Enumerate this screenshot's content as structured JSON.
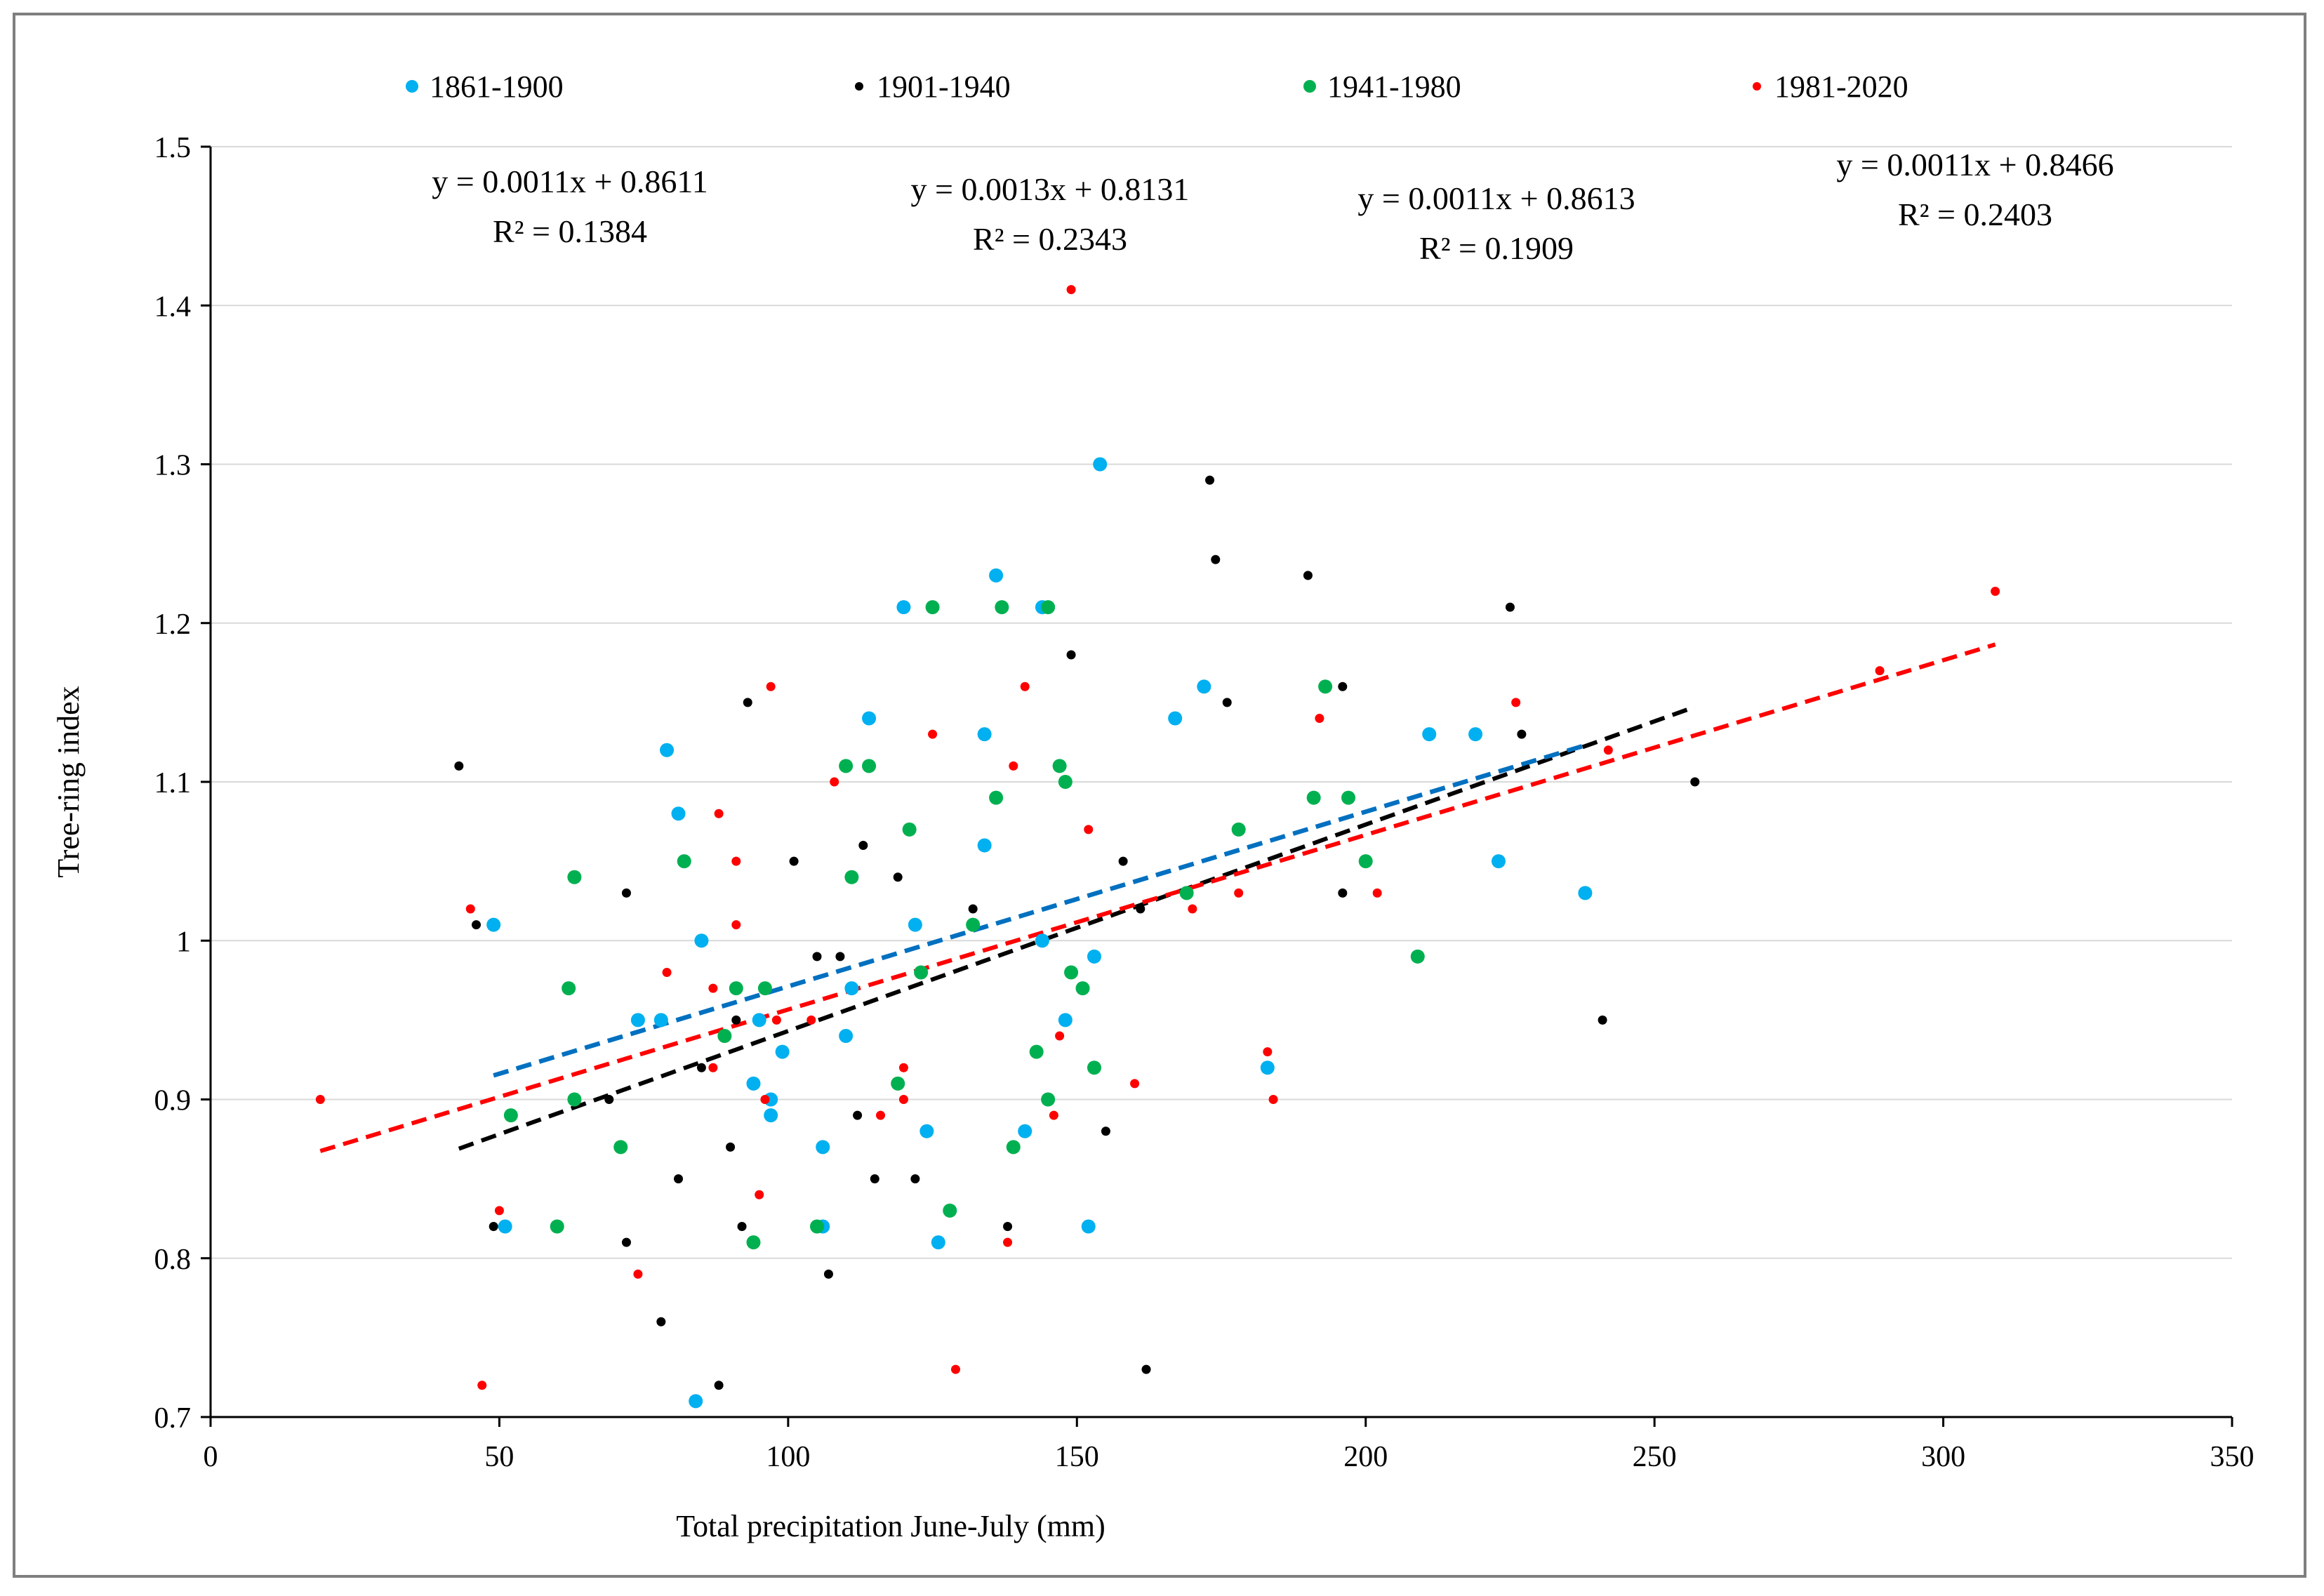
{
  "chart_data": {
    "type": "scatter",
    "xlabel": "Total precipitation  June-July (mm)",
    "ylabel": "Tree-ring index",
    "xlim": [
      0,
      350
    ],
    "ylim": [
      0.7,
      1.5
    ],
    "x_ticks": [
      "0",
      "50",
      "100",
      "150",
      "200",
      "250",
      "300",
      "350"
    ],
    "y_ticks": [
      "0.7",
      "0.8",
      "0.9",
      "1",
      "1.1",
      "1.2",
      "1.3",
      "1.4",
      "1.5"
    ],
    "grid": "horizontal",
    "legend_position": "top",
    "series": [
      {
        "name": "1861-1900",
        "color": "#00b0f0",
        "marker": "large",
        "equation": "y = 0.0011x + 0.8611",
        "r2": "R² = 0.1384",
        "trendline": {
          "slope": 0.0011,
          "intercept": 0.8611,
          "x_range": [
            49,
            238
          ],
          "color": "#0070c0"
        },
        "points": [
          [
            49,
            1.01
          ],
          [
            51,
            0.82
          ],
          [
            74,
            0.95
          ],
          [
            78,
            0.95
          ],
          [
            79,
            1.12
          ],
          [
            81,
            1.08
          ],
          [
            85,
            1.0
          ],
          [
            94,
            0.91
          ],
          [
            95,
            0.95
          ],
          [
            97,
            0.9
          ],
          [
            97,
            0.89
          ],
          [
            99,
            0.93
          ],
          [
            106,
            0.87
          ],
          [
            106,
            0.82
          ],
          [
            110,
            0.94
          ],
          [
            111,
            0.97
          ],
          [
            114,
            1.14
          ],
          [
            120,
            1.21
          ],
          [
            122,
            1.01
          ],
          [
            124,
            0.88
          ],
          [
            126,
            0.81
          ],
          [
            134,
            1.13
          ],
          [
            134,
            1.06
          ],
          [
            136,
            1.23
          ],
          [
            141,
            0.88
          ],
          [
            144,
            1.0
          ],
          [
            144,
            1.21
          ],
          [
            148,
            0.95
          ],
          [
            152,
            0.82
          ],
          [
            153,
            0.99
          ],
          [
            154,
            1.3
          ],
          [
            167,
            1.14
          ],
          [
            172,
            1.16
          ],
          [
            183,
            0.92
          ],
          [
            211,
            1.13
          ],
          [
            219,
            1.13
          ],
          [
            223,
            1.05
          ],
          [
            238,
            1.03
          ],
          [
            84,
            0.71
          ]
        ]
      },
      {
        "name": "1901-1940",
        "color": "#000000",
        "marker": "small",
        "equation": "y = 0.0013x + 0.8131",
        "r2": "R² = 0.2343",
        "trendline": {
          "slope": 0.0013,
          "intercept": 0.8131,
          "x_range": [
            43,
            257
          ],
          "color": "#000000"
        },
        "points": [
          [
            43,
            1.11
          ],
          [
            46,
            1.01
          ],
          [
            49,
            0.82
          ],
          [
            72,
            1.03
          ],
          [
            72,
            0.81
          ],
          [
            69,
            0.9
          ],
          [
            78,
            0.76
          ],
          [
            81,
            0.85
          ],
          [
            85,
            0.92
          ],
          [
            88,
            0.72
          ],
          [
            90,
            0.87
          ],
          [
            91,
            0.95
          ],
          [
            92,
            0.82
          ],
          [
            93,
            1.15
          ],
          [
            101,
            1.05
          ],
          [
            105,
            0.99
          ],
          [
            107,
            0.79
          ],
          [
            109,
            0.99
          ],
          [
            112,
            0.89
          ],
          [
            113,
            1.06
          ],
          [
            115,
            0.85
          ],
          [
            119,
            1.04
          ],
          [
            122,
            0.85
          ],
          [
            132,
            1.02
          ],
          [
            138,
            0.82
          ],
          [
            149,
            1.18
          ],
          [
            155,
            0.88
          ],
          [
            158,
            1.05
          ],
          [
            161,
            1.02
          ],
          [
            162,
            0.73
          ],
          [
            173,
            1.29
          ],
          [
            174,
            1.24
          ],
          [
            176,
            1.15
          ],
          [
            190,
            1.23
          ],
          [
            196,
            1.16
          ],
          [
            196,
            1.03
          ],
          [
            225,
            1.21
          ],
          [
            227,
            1.13
          ],
          [
            241,
            0.95
          ],
          [
            257,
            1.1
          ]
        ]
      },
      {
        "name": "1941-1980",
        "color": "#00b050",
        "marker": "large",
        "equation": "y = 0.0011x + 0.8613",
        "r2": "R² = 0.1909",
        "trendline": {
          "slope": 0.0011,
          "intercept": 0.8613,
          "x_range": [
            49,
            238
          ],
          "color": "#0070c0"
        },
        "points": [
          [
            52,
            0.89
          ],
          [
            60,
            0.82
          ],
          [
            62,
            0.97
          ],
          [
            63,
            1.04
          ],
          [
            63,
            0.9
          ],
          [
            71,
            0.87
          ],
          [
            82,
            1.05
          ],
          [
            89,
            0.94
          ],
          [
            91,
            0.97
          ],
          [
            94,
            0.81
          ],
          [
            96,
            0.97
          ],
          [
            105,
            0.82
          ],
          [
            110,
            1.11
          ],
          [
            111,
            1.04
          ],
          [
            114,
            1.11
          ],
          [
            119,
            0.91
          ],
          [
            121,
            1.07
          ],
          [
            123,
            0.98
          ],
          [
            125,
            1.21
          ],
          [
            128,
            0.83
          ],
          [
            132,
            1.01
          ],
          [
            136,
            1.09
          ],
          [
            137,
            1.21
          ],
          [
            139,
            0.87
          ],
          [
            143,
            0.93
          ],
          [
            145,
            0.9
          ],
          [
            145,
            1.21
          ],
          [
            147,
            1.11
          ],
          [
            148,
            1.1
          ],
          [
            149,
            0.98
          ],
          [
            151,
            0.97
          ],
          [
            153,
            0.92
          ],
          [
            169,
            1.03
          ],
          [
            178,
            1.07
          ],
          [
            191,
            1.09
          ],
          [
            193,
            1.16
          ],
          [
            197,
            1.09
          ],
          [
            200,
            1.05
          ],
          [
            209,
            0.99
          ]
        ]
      },
      {
        "name": "1981-2020",
        "color": "#ff0000",
        "marker": "small",
        "equation": "y = 0.0011x + 0.8466",
        "r2": "R² = 0.2403",
        "trendline": {
          "slope": 0.0011,
          "intercept": 0.8466,
          "x_range": [
            19,
            309
          ],
          "color": "#ff0000"
        },
        "points": [
          [
            19,
            0.9
          ],
          [
            45,
            1.02
          ],
          [
            47,
            0.72
          ],
          [
            50,
            0.83
          ],
          [
            74,
            0.79
          ],
          [
            79,
            0.98
          ],
          [
            87,
            0.97
          ],
          [
            87,
            0.92
          ],
          [
            88,
            1.08
          ],
          [
            91,
            1.05
          ],
          [
            91,
            1.01
          ],
          [
            95,
            0.84
          ],
          [
            96,
            0.9
          ],
          [
            97,
            1.16
          ],
          [
            98,
            0.95
          ],
          [
            104,
            0.95
          ],
          [
            108,
            1.1
          ],
          [
            116,
            0.89
          ],
          [
            120,
            0.92
          ],
          [
            120,
            0.9
          ],
          [
            125,
            1.13
          ],
          [
            129,
            0.73
          ],
          [
            138,
            0.81
          ],
          [
            139,
            1.11
          ],
          [
            141,
            1.16
          ],
          [
            146,
            0.89
          ],
          [
            147,
            0.94
          ],
          [
            149,
            1.41
          ],
          [
            152,
            1.07
          ],
          [
            160,
            0.91
          ],
          [
            170,
            1.02
          ],
          [
            178,
            1.03
          ],
          [
            183,
            0.93
          ],
          [
            184,
            0.9
          ],
          [
            192,
            1.14
          ],
          [
            202,
            1.03
          ],
          [
            226,
            1.15
          ],
          [
            242,
            1.12
          ],
          [
            289,
            1.17
          ],
          [
            309,
            1.22
          ]
        ]
      }
    ]
  }
}
